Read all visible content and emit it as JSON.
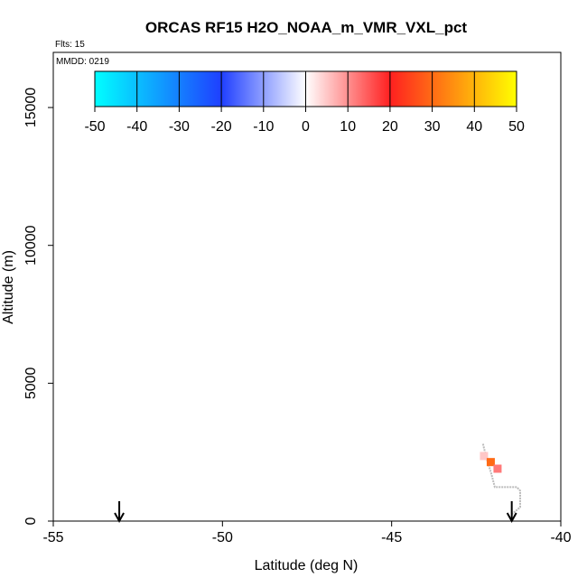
{
  "chart_data": {
    "type": "scatter",
    "title": "ORCAS RF15 H2O_NOAA_m_VMR_VXL_pct",
    "subtitle_flights": "Flts: 15",
    "subtitle_date": "MMDD: 0219",
    "xlabel": "Latitude (deg N)",
    "ylabel": "Altitude (m)",
    "xlim": [
      -55,
      -40
    ],
    "ylim": [
      0,
      17000
    ],
    "xticks": [
      -55,
      -50,
      -45,
      -40
    ],
    "xtick_labels": [
      "-55",
      "-50",
      "-45",
      "-40"
    ],
    "yticks": [
      0,
      5000,
      10000,
      15000
    ],
    "ytick_labels": [
      "0",
      "5000",
      "10000",
      "15000"
    ],
    "colorbar": {
      "range": [
        -50,
        50
      ],
      "ticks": [
        -50,
        -40,
        -30,
        -20,
        -10,
        0,
        10,
        20,
        30,
        40,
        50
      ],
      "tick_labels": [
        "-50",
        "-40",
        "-30",
        "-20",
        "-10",
        "0",
        "10",
        "20",
        "30",
        "40",
        "50"
      ],
      "stops": [
        {
          "v": -50,
          "color": "#00ffff"
        },
        {
          "v": -20,
          "color": "#1f3fff"
        },
        {
          "v": 0,
          "color": "#ffffff"
        },
        {
          "v": 20,
          "color": "#ff2020"
        },
        {
          "v": 50,
          "color": "#ffff00"
        }
      ]
    },
    "flight_track": [
      {
        "lat": -42.3,
        "alt": 2800
      },
      {
        "lat": -42.2,
        "alt": 2300
      },
      {
        "lat": -42.05,
        "alt": 1700
      },
      {
        "lat": -41.95,
        "alt": 1230
      },
      {
        "lat": -41.6,
        "alt": 1230
      },
      {
        "lat": -41.3,
        "alt": 1230
      },
      {
        "lat": -41.2,
        "alt": 1100
      },
      {
        "lat": -41.2,
        "alt": 500
      },
      {
        "lat": -41.45,
        "alt": 250
      }
    ],
    "points": [
      {
        "lat": -42.27,
        "alt": 2360,
        "value": 5
      },
      {
        "lat": -42.07,
        "alt": 2140,
        "value": 30
      },
      {
        "lat": -41.87,
        "alt": 1900,
        "value": 12
      }
    ],
    "arrows": [
      {
        "lat": -53.05
      },
      {
        "lat": -41.45
      }
    ]
  }
}
